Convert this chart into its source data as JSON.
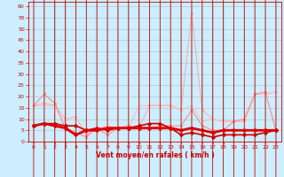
{
  "title": "",
  "xlabel": "Vent moyen/en rafales ( km/h )",
  "bg_color": "#cceeff",
  "grid_color": "#aacccc",
  "x_ticks": [
    0,
    1,
    2,
    3,
    4,
    5,
    6,
    7,
    8,
    9,
    10,
    11,
    12,
    13,
    14,
    15,
    16,
    17,
    18,
    19,
    20,
    21,
    22,
    23
  ],
  "y_ticks": [
    0,
    5,
    10,
    15,
    20,
    25,
    30,
    35,
    40,
    45,
    50,
    55,
    60
  ],
  "xlim": [
    -0.5,
    23.5
  ],
  "ylim": [
    0,
    62
  ],
  "lines": [
    {
      "x": [
        0,
        1,
        2,
        3,
        4,
        5,
        6,
        7,
        8,
        9,
        10,
        11,
        12,
        13,
        14,
        15,
        16,
        17,
        18,
        19,
        20,
        21,
        22,
        23
      ],
      "y": [
        16,
        17,
        16,
        10,
        11,
        3,
        6,
        6,
        6,
        6,
        6,
        16,
        16,
        16,
        14,
        57,
        14,
        10,
        9,
        9,
        9,
        21,
        21,
        22
      ],
      "color": "#ffaaaa",
      "lw": 0.8,
      "marker": "o",
      "ms": 2.0,
      "zorder": 2
    },
    {
      "x": [
        0,
        1,
        2,
        3,
        4,
        5,
        6,
        7,
        8,
        9,
        10,
        11,
        12,
        13,
        14,
        15,
        16,
        17,
        18,
        19,
        20,
        21,
        22,
        23
      ],
      "y": [
        16,
        21,
        17,
        6,
        4,
        2,
        6,
        3,
        6,
        7,
        6,
        6,
        7,
        7,
        7,
        14,
        7,
        5,
        5,
        9,
        10,
        21,
        22,
        5
      ],
      "color": "#ff8888",
      "lw": 0.8,
      "marker": "o",
      "ms": 2.0,
      "zorder": 3
    },
    {
      "x": [
        0,
        1,
        2,
        3,
        4,
        5,
        6,
        7,
        8,
        9,
        10,
        11,
        12,
        13,
        14,
        15,
        16,
        17,
        18,
        19,
        20,
        21,
        22,
        23
      ],
      "y": [
        16,
        16,
        16,
        10,
        11,
        3,
        6,
        7,
        6,
        6,
        16,
        16,
        16,
        16,
        14,
        16,
        9,
        10,
        9,
        9,
        9,
        21,
        21,
        22
      ],
      "color": "#ffbbbb",
      "lw": 0.8,
      "marker": "o",
      "ms": 1.5,
      "zorder": 2
    },
    {
      "x": [
        0,
        1,
        2,
        3,
        4,
        5,
        6,
        7,
        8,
        9,
        10,
        11,
        12,
        13,
        14,
        15,
        16,
        17,
        18,
        19,
        20,
        21,
        22,
        23
      ],
      "y": [
        7,
        8,
        8,
        7,
        7,
        5,
        6,
        5,
        6,
        6,
        7,
        8,
        8,
        6,
        3,
        4,
        3,
        2,
        3,
        3,
        3,
        3,
        4,
        5
      ],
      "color": "#cc0000",
      "lw": 1.2,
      "marker": "D",
      "ms": 2.5,
      "zorder": 5
    },
    {
      "x": [
        0,
        1,
        2,
        3,
        4,
        5,
        6,
        7,
        8,
        9,
        10,
        11,
        12,
        13,
        14,
        15,
        16,
        17,
        18,
        19,
        20,
        21,
        22,
        23
      ],
      "y": [
        7,
        8,
        7,
        6,
        3,
        5,
        5,
        6,
        6,
        6,
        6,
        6,
        6,
        6,
        5,
        6,
        5,
        4,
        5,
        5,
        5,
        5,
        5,
        5
      ],
      "color": "#dd0000",
      "lw": 2.0,
      "marker": "D",
      "ms": 2.5,
      "zorder": 6
    }
  ],
  "arrows_x": [
    0,
    1,
    2,
    3,
    4,
    5,
    6,
    7,
    8,
    9,
    10,
    11,
    12,
    13,
    14,
    15,
    16,
    17,
    18,
    19,
    20,
    21,
    22,
    23
  ],
  "arrow_angles": [
    270,
    270,
    270,
    270,
    225,
    225,
    270,
    225,
    225,
    225,
    225,
    225,
    225,
    225,
    270,
    270,
    225,
    225,
    225,
    270,
    225,
    225,
    225,
    225
  ]
}
